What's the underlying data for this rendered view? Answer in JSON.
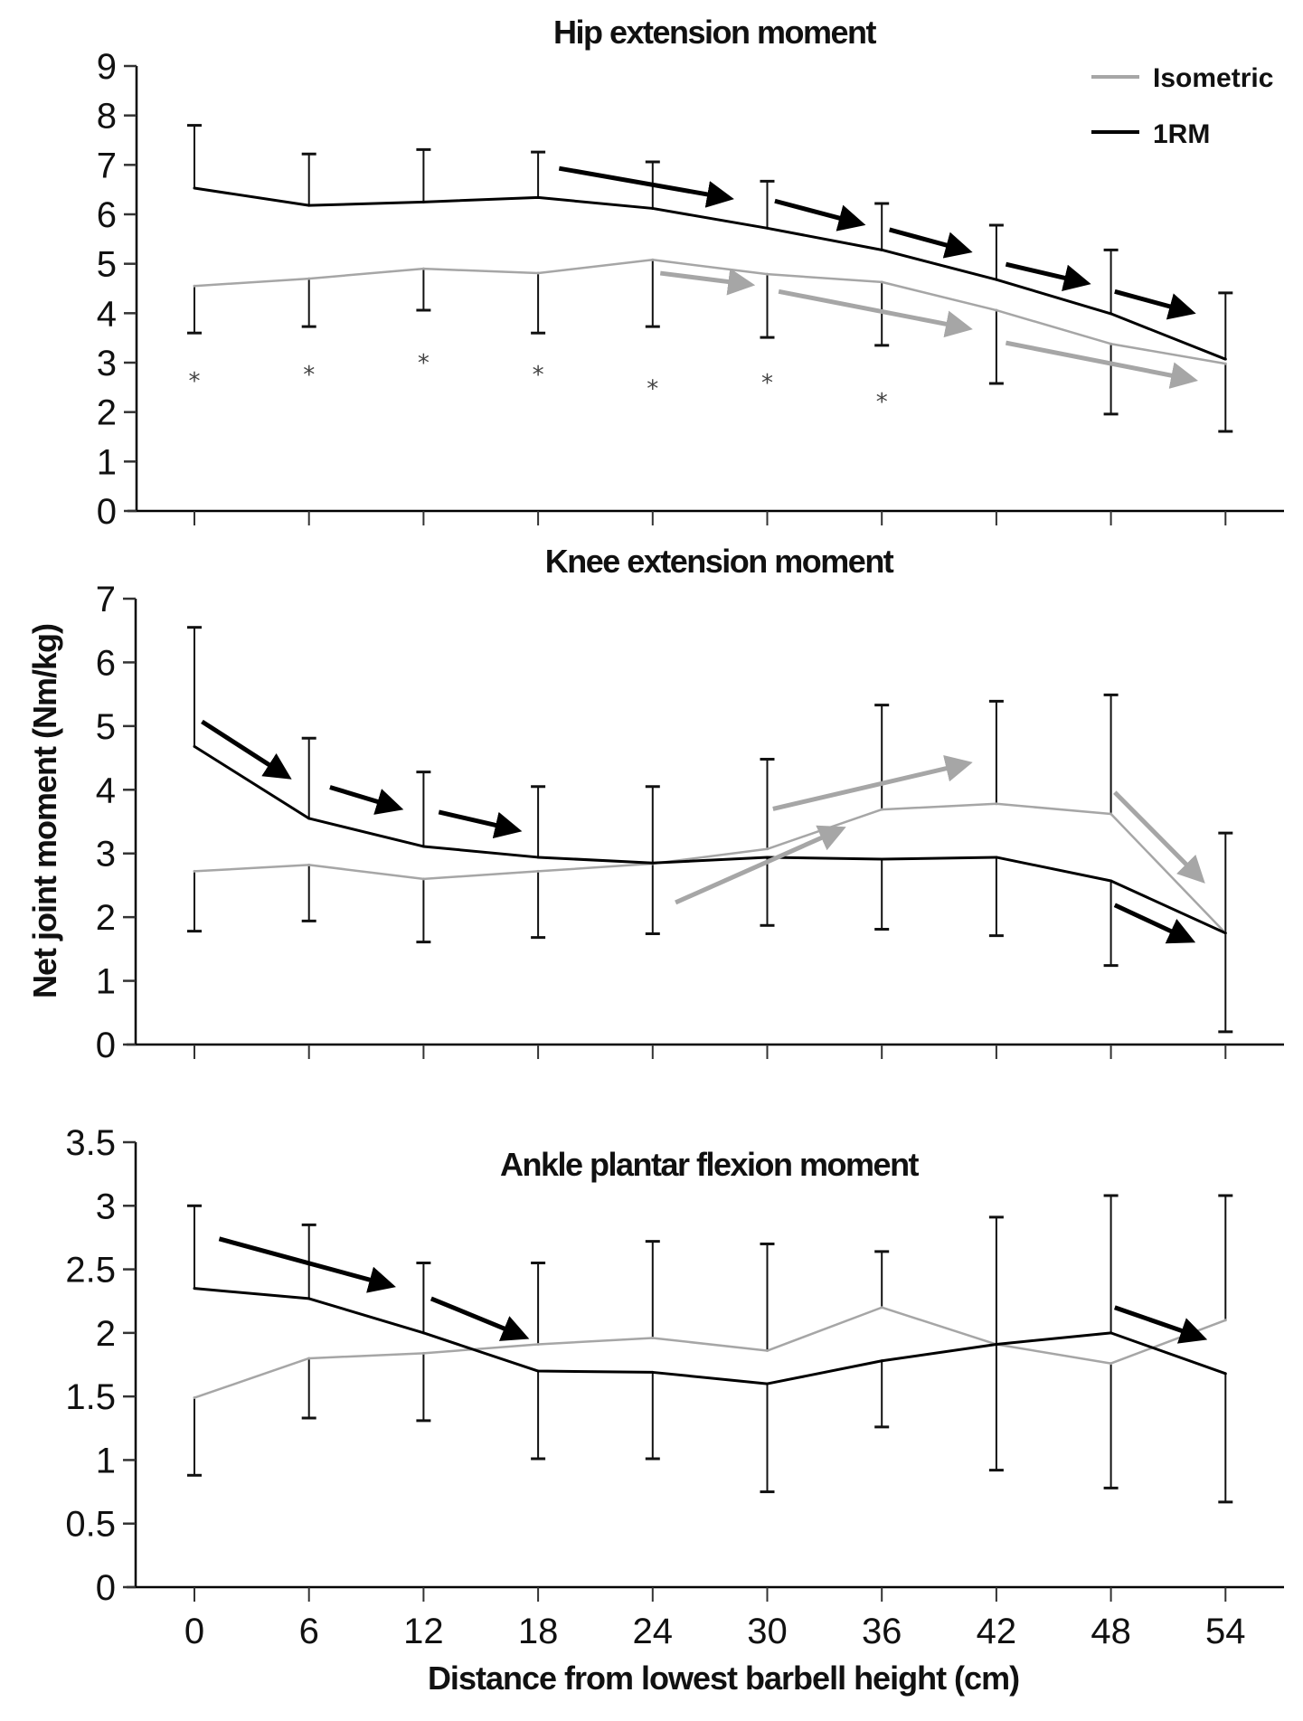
{
  "chart_data": {
    "type": "line",
    "x": [
      0,
      6,
      12,
      18,
      24,
      30,
      36,
      42,
      48,
      54
    ],
    "x_tick_labels": [
      "0",
      "6",
      "12",
      "18",
      "24",
      "30",
      "36",
      "42",
      "48",
      "54"
    ],
    "xlabel": "Distance from lowest barbell height (cm)",
    "ylabel": "Net joint moment (Nm/kg)",
    "legend": {
      "placement": "top-right",
      "entries": [
        {
          "name": "Isometric",
          "color": "#a6a6a6"
        },
        {
          "name": "1RM",
          "color": "#000000"
        }
      ]
    },
    "series_colors": {
      "Isometric": "#a6a6a6",
      "1RM": "#000000",
      "error_bar": "#111111",
      "iso_arrow": "#a6a6a6",
      "rm_arrow": "#000000"
    },
    "panels": [
      {
        "id": "hip",
        "title": "Hip extension moment",
        "ylim": [
          0,
          9
        ],
        "y_ticks": [
          0,
          1,
          2,
          3,
          4,
          5,
          6,
          7,
          8,
          9
        ],
        "y_tick_labels": [
          "0",
          "1",
          "2",
          "3",
          "4",
          "5",
          "6",
          "7",
          "8",
          "9"
        ],
        "show_x_tick_labels": false,
        "series": [
          {
            "name": "Isometric",
            "values": [
              4.55,
              4.7,
              4.9,
              4.81,
              5.08,
              4.79,
              4.63,
              4.06,
              3.38,
              2.98
            ],
            "error_lower": [
              3.6,
              3.73,
              4.06,
              3.6,
              3.73,
              3.51,
              3.35,
              2.58,
              1.96,
              1.61
            ]
          },
          {
            "name": "1RM",
            "values": [
              6.53,
              6.18,
              6.25,
              6.34,
              6.12,
              5.72,
              5.28,
              4.68,
              3.99,
              3.07
            ],
            "error_upper": [
              7.8,
              7.22,
              7.31,
              7.26,
              7.06,
              6.67,
              6.22,
              5.78,
              5.28,
              4.41
            ]
          }
        ],
        "significance_markers": [
          {
            "x": 0,
            "y": 2.65,
            "label": "*"
          },
          {
            "x": 6,
            "y": 2.78,
            "label": "*"
          },
          {
            "x": 12,
            "y": 3.02,
            "label": "*"
          },
          {
            "x": 18,
            "y": 2.78,
            "label": "*"
          },
          {
            "x": 24,
            "y": 2.5,
            "label": "*"
          },
          {
            "x": 30,
            "y": 2.62,
            "label": "*"
          },
          {
            "x": 36,
            "y": 2.23,
            "label": "*"
          }
        ],
        "trend_arrows": [
          {
            "series": "1RM",
            "from": [
              19.1,
              6.93
            ],
            "to": [
              27.8,
              6.34
            ]
          },
          {
            "series": "1RM",
            "from": [
              30.4,
              6.27
            ],
            "to": [
              34.7,
              5.83
            ]
          },
          {
            "series": "1RM",
            "from": [
              36.4,
              5.69
            ],
            "to": [
              40.3,
              5.28
            ]
          },
          {
            "series": "1RM",
            "from": [
              42.5,
              4.99
            ],
            "to": [
              46.5,
              4.63
            ]
          },
          {
            "series": "1RM",
            "from": [
              48.2,
              4.44
            ],
            "to": [
              52.0,
              4.04
            ]
          },
          {
            "series": "Isometric",
            "from": [
              24.4,
              4.81
            ],
            "to": [
              28.9,
              4.59
            ]
          },
          {
            "series": "Isometric",
            "from": [
              30.6,
              4.44
            ],
            "to": [
              40.3,
              3.71
            ]
          },
          {
            "series": "Isometric",
            "from": [
              42.5,
              3.4
            ],
            "to": [
              52.1,
              2.67
            ]
          }
        ]
      },
      {
        "id": "knee",
        "title": "Knee extension moment",
        "ylim": [
          0,
          7
        ],
        "y_ticks": [
          0,
          1,
          2,
          3,
          4,
          5,
          6,
          7
        ],
        "y_tick_labels": [
          "0",
          "1",
          "2",
          "3",
          "4",
          "5",
          "6",
          "7"
        ],
        "show_x_tick_labels": false,
        "series": [
          {
            "name": "Isometric",
            "values": [
              2.72,
              2.82,
              2.6,
              2.72,
              2.84,
              3.07,
              3.69,
              3.78,
              3.62,
              1.75
            ],
            "error_upper": [
              null,
              null,
              null,
              null,
              null,
              4.48,
              5.33,
              5.39,
              5.49,
              null
            ],
            "error_lower": [
              null,
              null,
              null,
              null,
              null,
              null,
              null,
              null,
              null,
              null
            ]
          },
          {
            "name": "1RM",
            "values": [
              4.68,
              3.55,
              3.11,
              2.94,
              2.85,
              2.94,
              2.91,
              2.94,
              2.57,
              1.75
            ],
            "error_upper": [
              6.55,
              4.81,
              4.28,
              4.05,
              4.05,
              null,
              null,
              null,
              null,
              3.32
            ],
            "error_lower": [
              null,
              null,
              null,
              null,
              null,
              1.87,
              1.81,
              1.71,
              1.24,
              0.2
            ]
          }
        ],
        "iso_error_lower_early": [
          1.78,
          1.94,
          1.61,
          1.68,
          1.74
        ],
        "trend_arrows": [
          {
            "series": "1RM",
            "from": [
              0.4,
              5.07
            ],
            "to": [
              4.7,
              4.24
            ]
          },
          {
            "series": "1RM",
            "from": [
              7.1,
              4.04
            ],
            "to": [
              10.5,
              3.73
            ]
          },
          {
            "series": "1RM",
            "from": [
              12.8,
              3.65
            ],
            "to": [
              16.7,
              3.38
            ]
          },
          {
            "series": "1RM",
            "from": [
              48.2,
              2.19
            ],
            "to": [
              52.0,
              1.66
            ]
          },
          {
            "series": "Isometric",
            "from": [
              25.2,
              2.23
            ],
            "to": [
              33.7,
              3.36
            ]
          },
          {
            "series": "Isometric",
            "from": [
              30.3,
              3.7
            ],
            "to": [
              40.3,
              4.4
            ]
          },
          {
            "series": "Isometric",
            "from": [
              48.2,
              3.96
            ],
            "to": [
              52.6,
              2.63
            ]
          }
        ]
      },
      {
        "id": "ankle",
        "title": "Ankle plantar flexion moment",
        "ylim": [
          0,
          3.5
        ],
        "y_ticks": [
          0,
          0.5,
          1,
          1.5,
          2,
          2.5,
          3,
          3.5
        ],
        "y_tick_labels": [
          "0",
          "0.5",
          "1",
          "1.5",
          "2",
          "2.5",
          "3",
          "3.5"
        ],
        "show_x_tick_labels": true,
        "series": [
          {
            "name": "Isometric",
            "values": [
              1.49,
              1.8,
              1.84,
              1.91,
              1.96,
              1.86,
              2.2,
              1.91,
              1.76,
              2.1
            ]
          },
          {
            "name": "1RM",
            "values": [
              2.35,
              2.27,
              2.0,
              1.7,
              1.69,
              1.6,
              1.78,
              1.91,
              2.0,
              1.68
            ]
          }
        ],
        "error_bars": [
          {
            "x": 0,
            "lower": 0.88,
            "upper": 3.0
          },
          {
            "x": 6,
            "lower": 1.33,
            "upper": 2.85
          },
          {
            "x": 12,
            "lower": 1.31,
            "upper": 2.55
          },
          {
            "x": 18,
            "lower": 1.01,
            "upper": 2.55
          },
          {
            "x": 24,
            "lower": 1.01,
            "upper": 2.72
          },
          {
            "x": 30,
            "lower": 0.75,
            "upper": 2.7
          },
          {
            "x": 36,
            "lower": 1.26,
            "upper": 2.64
          },
          {
            "x": 42,
            "lower": 0.92,
            "upper": 2.91
          },
          {
            "x": 48,
            "lower": 0.78,
            "upper": 3.08
          },
          {
            "x": 54,
            "lower": 0.67,
            "upper": 3.08
          }
        ],
        "trend_arrows": [
          {
            "series": "1RM",
            "from": [
              1.3,
              2.74
            ],
            "to": [
              10.1,
              2.38
            ]
          },
          {
            "series": "1RM",
            "from": [
              12.4,
              2.27
            ],
            "to": [
              17.1,
              1.98
            ]
          },
          {
            "series": "1RM",
            "from": [
              48.2,
              2.2
            ],
            "to": [
              52.6,
              1.97
            ]
          }
        ]
      }
    ]
  }
}
